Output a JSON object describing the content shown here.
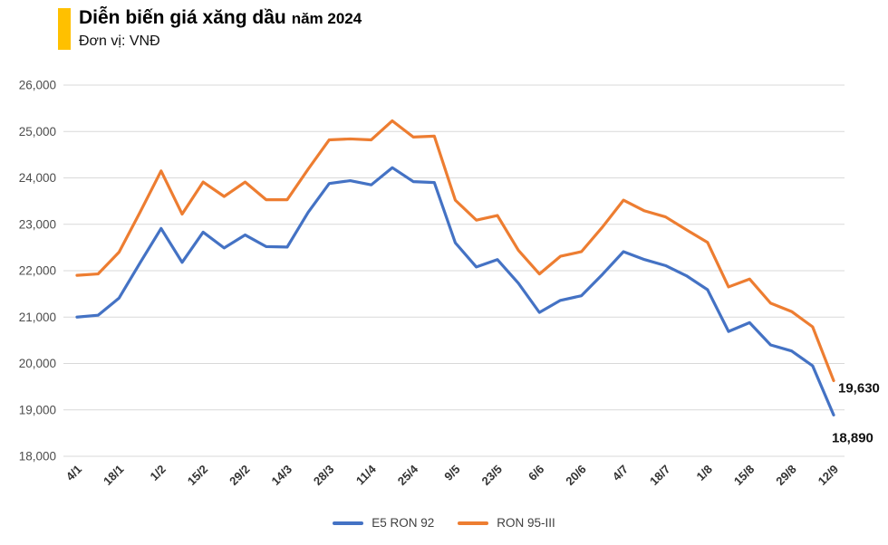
{
  "header": {
    "title": "Diễn biến giá xăng dầu",
    "title_suffix": "năm 2024",
    "subtitle": "Đơn vị: VNĐ",
    "accent_color": "#FFC000"
  },
  "chart_data": {
    "type": "line",
    "title": "Diễn biến giá xăng dầu năm 2024",
    "unit_label": "Đơn vị: VNĐ",
    "xlabel": "",
    "ylabel": "",
    "grid": true,
    "legend_position": "bottom",
    "ylim": [
      18000,
      26000
    ],
    "y_tick_step": 1000,
    "y_ticks": [
      {
        "value": 26000,
        "label": "26,000"
      },
      {
        "value": 25000,
        "label": "25,000"
      },
      {
        "value": 24000,
        "label": "24,000"
      },
      {
        "value": 23000,
        "label": "23,000"
      },
      {
        "value": 22000,
        "label": "22,000"
      },
      {
        "value": 21000,
        "label": "21,000"
      },
      {
        "value": 20000,
        "label": "20,000"
      },
      {
        "value": 19000,
        "label": "19,000"
      },
      {
        "value": 18000,
        "label": "18,000"
      }
    ],
    "x": [
      "4/1",
      "11/1",
      "18/1",
      "25/1",
      "1/2",
      "8/2",
      "15/2",
      "22/2",
      "29/2",
      "7/3",
      "14/3",
      "21/3",
      "28/3",
      "4/4",
      "11/4",
      "18/4",
      "25/4",
      "2/5",
      "9/5",
      "16/5",
      "23/5",
      "30/5",
      "6/6",
      "13/6",
      "20/6",
      "27/6",
      "4/7",
      "11/7",
      "18/7",
      "25/7",
      "1/8",
      "8/8",
      "15/8",
      "22/8",
      "29/8",
      "5/9",
      "12/9"
    ],
    "x_tick_labels": [
      "4/1",
      "18/1",
      "1/2",
      "15/2",
      "29/2",
      "14/3",
      "28/3",
      "11/4",
      "25/4",
      "9/5",
      "23/5",
      "6/6",
      "20/6",
      "4/7",
      "18/7",
      "1/8",
      "15/8",
      "29/8",
      "12/9"
    ],
    "series": [
      {
        "name": "E5 RON 92",
        "color": "#4472C4",
        "end_label": "18,890",
        "values": [
          21000,
          21040,
          21410,
          22170,
          22910,
          22180,
          22830,
          22490,
          22770,
          22520,
          22510,
          23260,
          23880,
          23940,
          23850,
          24220,
          23920,
          23900,
          22600,
          22080,
          22240,
          21730,
          21100,
          21360,
          21460,
          21920,
          22410,
          22240,
          22110,
          21890,
          21590,
          20690,
          20880,
          20400,
          20270,
          19950,
          18890
        ]
      },
      {
        "name": "RON 95-III",
        "color": "#ED7D31",
        "end_label": "19,630",
        "values": [
          21900,
          21930,
          22400,
          23260,
          24150,
          23220,
          23910,
          23600,
          23910,
          23530,
          23530,
          24190,
          24820,
          24840,
          24820,
          25230,
          24880,
          24900,
          23520,
          23090,
          23190,
          22440,
          21930,
          22310,
          22410,
          22940,
          23520,
          23290,
          23160,
          22880,
          22610,
          21650,
          21820,
          21300,
          21120,
          20790,
          19630
        ]
      }
    ]
  }
}
